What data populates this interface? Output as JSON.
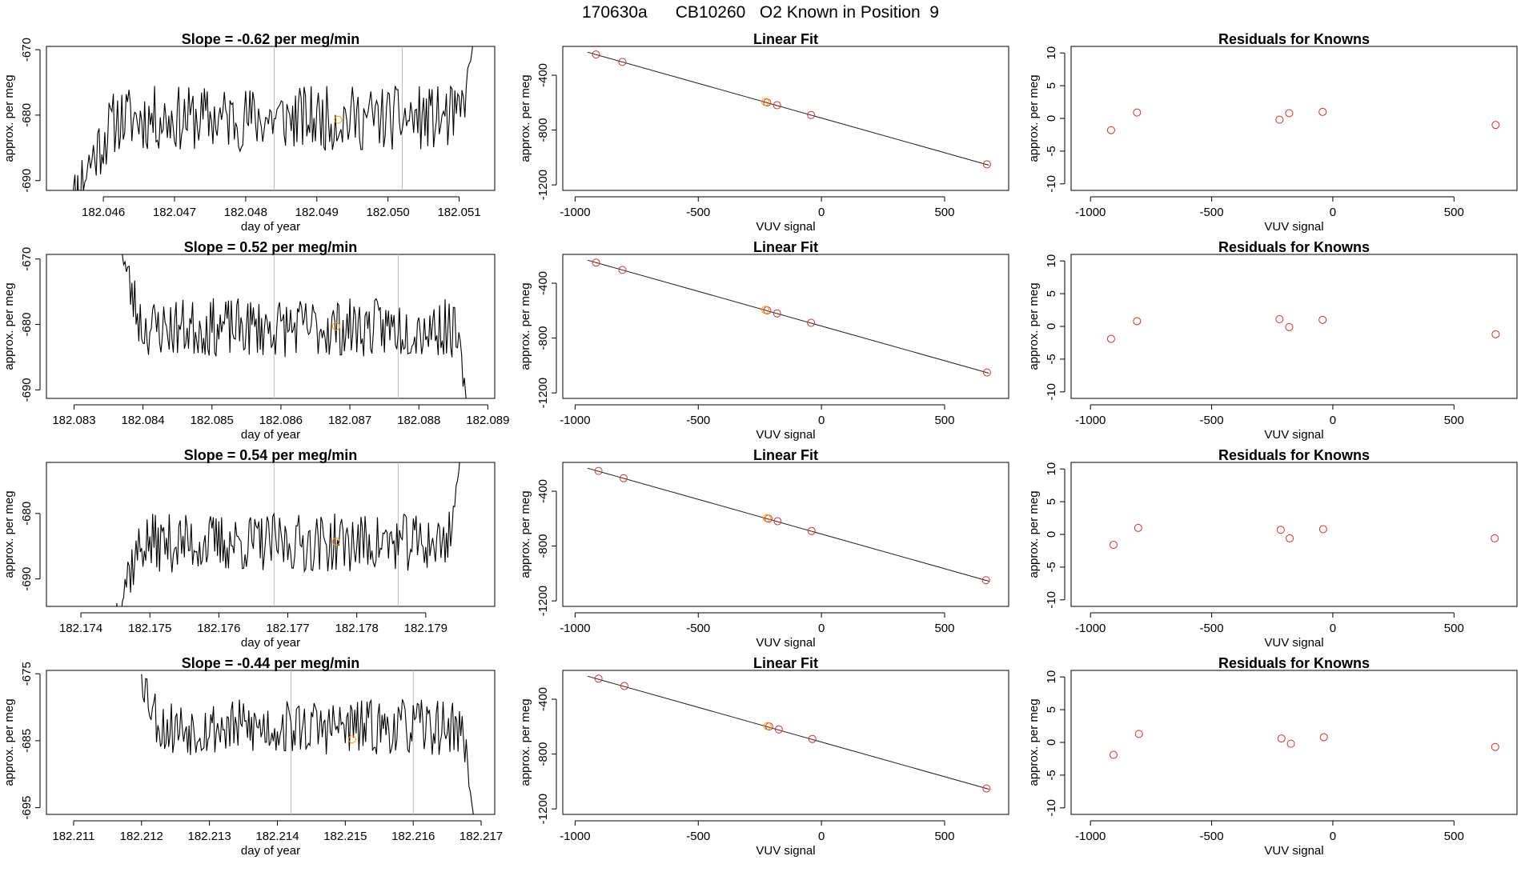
{
  "figure_title": {
    "run": "170630a",
    "cylinder": "CB10260",
    "description": "O2 Known in Position  9"
  },
  "colors": {
    "line": "#000000",
    "known_point": "#cc3333",
    "highlight_point": "#ff9900",
    "marker_line": "#bbbbbb",
    "fit_line": "#222222",
    "axis": "#000000"
  },
  "chart_data": [
    {
      "type": "line",
      "row": 0,
      "title": "Slope =  -0.62  per meg/min",
      "xlabel": "day of year",
      "ylabel": "approx. per meg",
      "xlim": [
        182.0452,
        182.0515
      ],
      "ylim": [
        -691.5,
        -669.5
      ],
      "xticks": [
        182.046,
        182.047,
        182.048,
        182.049,
        182.05,
        182.051
      ],
      "xtick_labels": [
        "182.046",
        "182.047",
        "182.048",
        "182.049",
        "182.050",
        "182.051"
      ],
      "yticks": [
        -670,
        -680,
        -690
      ],
      "ytick_labels": [
        "-670",
        "-680",
        "-690"
      ],
      "trace_start": 182.0455,
      "trace_end": 182.0512,
      "trace_dx": 2e-05,
      "trace_base": -680.5,
      "trace_amp": 5,
      "trace_seed": 11,
      "ramp_start": -698,
      "ramp_len": 0.0007,
      "end_spike": -668,
      "vlines": [
        182.0484,
        182.0502
      ],
      "highlight": {
        "x": 182.0493,
        "y": -680.7
      }
    },
    {
      "type": "line",
      "row": 1,
      "title": "Slope =  0.52  per meg/min",
      "xlabel": "day of year",
      "ylabel": "approx. per meg",
      "xlim": [
        182.0826,
        182.0891
      ],
      "ylim": [
        -691.3,
        -669.3
      ],
      "xticks": [
        182.083,
        182.084,
        182.085,
        182.086,
        182.087,
        182.088,
        182.089
      ],
      "xtick_labels": [
        "182.083",
        "182.084",
        "182.085",
        "182.086",
        "182.087",
        "182.088",
        "182.089"
      ],
      "yticks": [
        -670,
        -680,
        -690
      ],
      "ytick_labels": [
        "-670",
        "-680",
        "-690"
      ],
      "trace_start": 182.0837,
      "trace_end": 182.0887,
      "trace_dx": 2e-05,
      "trace_base": -680.5,
      "trace_amp": 4.5,
      "trace_seed": 23,
      "ramp_start": -667,
      "ramp_len": 0.0003,
      "end_spike": -693,
      "vlines": [
        182.0859,
        182.0877
      ],
      "highlight": {
        "x": 182.0868,
        "y": -680.3
      }
    },
    {
      "type": "line",
      "row": 2,
      "title": "Slope =  0.54  per meg/min",
      "xlabel": "day of year",
      "ylabel": "approx. per meg",
      "xlim": [
        182.1735,
        182.18
      ],
      "ylim": [
        -694.2,
        -672.2
      ],
      "xticks": [
        182.174,
        182.175,
        182.176,
        182.177,
        182.178,
        182.179
      ],
      "xtick_labels": [
        "182.174",
        "182.175",
        "182.176",
        "182.177",
        "182.178",
        "182.179"
      ],
      "yticks": [
        -680,
        -690
      ],
      "ytick_labels": [
        "-680",
        "-690"
      ],
      "trace_start": 182.1745,
      "trace_end": 182.1795,
      "trace_dx": 2e-05,
      "trace_base": -684.5,
      "trace_amp": 4.5,
      "trace_seed": 37,
      "ramp_start": -697,
      "ramp_len": 0.0004,
      "end_spike": -671,
      "vlines": [
        182.1768,
        182.1786
      ],
      "highlight": {
        "x": 182.1777,
        "y": -684.3
      }
    },
    {
      "type": "line",
      "row": 3,
      "title": "Slope =  -0.44  per meg/min",
      "xlabel": "day of year",
      "ylabel": "approx. per meg",
      "xlim": [
        182.2106,
        182.2172
      ],
      "ylim": [
        -696,
        -674.5
      ],
      "xticks": [
        182.211,
        182.212,
        182.213,
        182.214,
        182.215,
        182.216,
        182.217
      ],
      "xtick_labels": [
        "182.211",
        "182.212",
        "182.213",
        "182.214",
        "182.215",
        "182.216",
        "182.217"
      ],
      "yticks": [
        -675,
        -685,
        -695
      ],
      "ytick_labels": [
        "-675",
        "-685",
        "-695"
      ],
      "trace_start": 182.212,
      "trace_end": 182.2169,
      "trace_dx": 2e-05,
      "trace_base": -683,
      "trace_amp": 4.2,
      "trace_seed": 53,
      "ramp_start": -673,
      "ramp_len": 0.0003,
      "end_spike": -698,
      "vlines": [
        182.2142,
        182.216
      ],
      "highlight": {
        "x": 182.2151,
        "y": -684.8
      }
    },
    {
      "type": "scatter",
      "row": 0,
      "title": "Linear Fit",
      "xlabel": "VUV signal",
      "ylabel": "approx. per meg",
      "xlim": [
        -1050,
        760
      ],
      "ylim": [
        -1240,
        -190
      ],
      "xticks": [
        -1000,
        -500,
        0,
        500
      ],
      "xtick_labels": [
        "-1000",
        "-500",
        "0",
        "500"
      ],
      "yticks": [
        -400,
        -800,
        -1200
      ],
      "ytick_labels": [
        "-400",
        "-800",
        "-1200"
      ],
      "points": [
        [
          -915,
          -249
        ],
        [
          -808,
          -303
        ],
        [
          -220,
          -599
        ],
        [
          -180,
          -619
        ],
        [
          -42,
          -690
        ],
        [
          672,
          -1050
        ]
      ],
      "highlight": [
        -228,
        -595
      ],
      "fit": [
        [
          -950,
          -232
        ],
        [
          680,
          -1056
        ]
      ]
    },
    {
      "type": "scatter",
      "row": 0,
      "title": "Residuals for Knowns",
      "xlabel": "VUV signal",
      "ylabel": "approx. per meg",
      "xlim": [
        -1080,
        760
      ],
      "ylim": [
        -11,
        11
      ],
      "xticks": [
        -1000,
        -500,
        0,
        500
      ],
      "xtick_labels": [
        "-1000",
        "-500",
        "0",
        "500"
      ],
      "yticks": [
        10,
        5,
        0,
        -5,
        -10
      ],
      "ytick_labels": [
        "10",
        "5",
        "0",
        "-5",
        "-10"
      ],
      "points": [
        [
          -915,
          -1.8
        ],
        [
          -808,
          0.9
        ],
        [
          -220,
          -0.2
        ],
        [
          -180,
          0.8
        ],
        [
          -42,
          1.0
        ],
        [
          672,
          -1.0
        ]
      ]
    },
    {
      "type": "scatter",
      "row": 1,
      "title": "Linear Fit",
      "xlabel": "VUV signal",
      "ylabel": "approx. per meg",
      "xlim": [
        -1050,
        760
      ],
      "ylim": [
        -1240,
        -190
      ],
      "xticks": [
        -1000,
        -500,
        0,
        500
      ],
      "xtick_labels": [
        "-1000",
        "-500",
        "0",
        "500"
      ],
      "yticks": [
        -400,
        -800,
        -1200
      ],
      "ytick_labels": [
        "-400",
        "-800",
        "-1200"
      ],
      "points": [
        [
          -915,
          -250
        ],
        [
          -808,
          -303
        ],
        [
          -220,
          -598
        ],
        [
          -180,
          -620
        ],
        [
          -42,
          -689
        ],
        [
          672,
          -1051
        ]
      ],
      "highlight": [
        -228,
        -594
      ],
      "fit": [
        [
          -950,
          -232
        ],
        [
          680,
          -1056
        ]
      ]
    },
    {
      "type": "scatter",
      "row": 1,
      "title": "Residuals for Knowns",
      "xlabel": "VUV signal",
      "ylabel": "approx. per meg",
      "xlim": [
        -1080,
        760
      ],
      "ylim": [
        -11,
        11
      ],
      "xticks": [
        -1000,
        -500,
        0,
        500
      ],
      "xtick_labels": [
        "-1000",
        "-500",
        "0",
        "500"
      ],
      "points": [
        [
          -915,
          -1.9
        ],
        [
          -808,
          0.8
        ],
        [
          -220,
          1.1
        ],
        [
          -180,
          -0.1
        ],
        [
          -42,
          1.0
        ],
        [
          672,
          -1.2
        ]
      ],
      "yticks": [
        10,
        5,
        0,
        -5,
        -10
      ],
      "ytick_labels": [
        "10",
        "5",
        "0",
        "-5",
        "-10"
      ]
    },
    {
      "type": "scatter",
      "row": 2,
      "title": "Linear Fit",
      "xlabel": "VUV signal",
      "ylabel": "approx. per meg",
      "xlim": [
        -1050,
        760
      ],
      "ylim": [
        -1240,
        -190
      ],
      "xticks": [
        -1000,
        -500,
        0,
        500
      ],
      "xtick_labels": [
        "-1000",
        "-500",
        "0",
        "500"
      ],
      "yticks": [
        -400,
        -800,
        -1200
      ],
      "ytick_labels": [
        "-400",
        "-800",
        "-1200"
      ],
      "points": [
        [
          -905,
          -252
        ],
        [
          -803,
          -305
        ],
        [
          -215,
          -600
        ],
        [
          -178,
          -619
        ],
        [
          -40,
          -690
        ],
        [
          668,
          -1049
        ]
      ],
      "highlight": [
        -222,
        -596
      ],
      "fit": [
        [
          -950,
          -232
        ],
        [
          680,
          -1056
        ]
      ]
    },
    {
      "type": "scatter",
      "row": 2,
      "title": "Residuals for Knowns",
      "xlabel": "VUV signal",
      "ylabel": "approx. per meg",
      "xlim": [
        -1080,
        760
      ],
      "ylim": [
        -11,
        11
      ],
      "xticks": [
        -1000,
        -500,
        0,
        500
      ],
      "xtick_labels": [
        "-1000",
        "-500",
        "0",
        "500"
      ],
      "yticks": [
        10,
        5,
        0,
        -5,
        -10
      ],
      "ytick_labels": [
        "10",
        "5",
        "0",
        "-5",
        "-10"
      ],
      "points": [
        [
          -905,
          -1.6
        ],
        [
          -803,
          1.0
        ],
        [
          -215,
          0.7
        ],
        [
          -178,
          -0.6
        ],
        [
          -40,
          0.8
        ],
        [
          668,
          -0.6
        ]
      ]
    },
    {
      "type": "scatter",
      "row": 3,
      "title": "Linear Fit",
      "xlabel": "VUV signal",
      "ylabel": "approx. per meg",
      "xlim": [
        -1050,
        760
      ],
      "ylim": [
        -1240,
        -190
      ],
      "xticks": [
        -1000,
        -500,
        0,
        500
      ],
      "xtick_labels": [
        "-1000",
        "-500",
        "0",
        "500"
      ],
      "yticks": [
        -400,
        -800,
        -1200
      ],
      "ytick_labels": [
        "-400",
        "-800",
        "-1200"
      ],
      "points": [
        [
          -905,
          -250
        ],
        [
          -800,
          -304
        ],
        [
          -212,
          -599
        ],
        [
          -173,
          -620
        ],
        [
          -37,
          -690
        ],
        [
          670,
          -1051
        ]
      ],
      "highlight": [
        -219,
        -596
      ],
      "fit": [
        [
          -950,
          -232
        ],
        [
          680,
          -1056
        ]
      ]
    },
    {
      "type": "scatter",
      "row": 3,
      "title": "Residuals for Knowns",
      "xlabel": "VUV signal",
      "ylabel": "approx. per meg",
      "xlim": [
        -1080,
        760
      ],
      "ylim": [
        -11,
        11
      ],
      "xticks": [
        -1000,
        -500,
        0,
        500
      ],
      "xtick_labels": [
        "-1000",
        "-500",
        "0",
        "500"
      ],
      "yticks": [
        10,
        5,
        0,
        -5,
        -10
      ],
      "ytick_labels": [
        "10",
        "5",
        "0",
        "-5",
        "-10"
      ],
      "points": [
        [
          -905,
          -1.9
        ],
        [
          -800,
          1.3
        ],
        [
          -212,
          0.6
        ],
        [
          -173,
          -0.2
        ],
        [
          -37,
          0.8
        ],
        [
          670,
          -0.7
        ]
      ]
    }
  ]
}
